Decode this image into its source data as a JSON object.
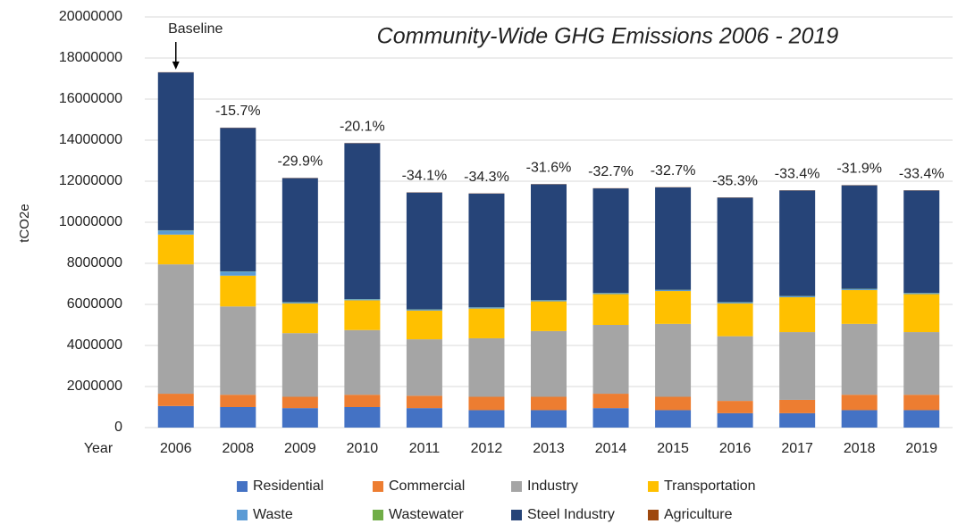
{
  "chart_data": {
    "type": "stacked_bar",
    "title": "Community-Wide GHG Emissions 2006 - 2019",
    "y_label": "tCO2e",
    "x_label": "Year",
    "categories": [
      "2006",
      "2008",
      "2009",
      "2010",
      "2011",
      "2012",
      "2013",
      "2014",
      "2015",
      "2016",
      "2017",
      "2018",
      "2019"
    ],
    "annotations": [
      "Baseline",
      "-15.7%",
      "-29.9%",
      "-20.1%",
      "-34.1%",
      "-34.3%",
      "-31.6%",
      "-32.7%",
      "-32.7%",
      "-35.3%",
      "-33.4%",
      "-31.9%",
      "-33.4%"
    ],
    "series": [
      {
        "name": "Residential",
        "color": "#4472c4",
        "values": [
          1050000,
          1000000,
          950000,
          1000000,
          950000,
          850000,
          850000,
          950000,
          850000,
          700000,
          700000,
          850000,
          850000
        ]
      },
      {
        "name": "Commercial",
        "color": "#ed7d31",
        "values": [
          600000,
          600000,
          550000,
          600000,
          600000,
          650000,
          650000,
          700000,
          650000,
          600000,
          650000,
          750000,
          750000
        ]
      },
      {
        "name": "Industry",
        "color": "#a5a5a5",
        "values": [
          6300000,
          4300000,
          3100000,
          3150000,
          2750000,
          2850000,
          3200000,
          3350000,
          3550000,
          3150000,
          3300000,
          3450000,
          3050000
        ]
      },
      {
        "name": "Transportation",
        "color": "#ffc000",
        "values": [
          1450000,
          1500000,
          1450000,
          1450000,
          1400000,
          1450000,
          1450000,
          1500000,
          1600000,
          1600000,
          1700000,
          1650000,
          1850000
        ]
      },
      {
        "name": "Waste",
        "color": "#5b9bd5",
        "values": [
          200000,
          200000,
          50000,
          50000,
          50000,
          50000,
          50000,
          50000,
          50000,
          50000,
          50000,
          50000,
          50000
        ]
      },
      {
        "name": "Wastewater",
        "color": "#70ad47",
        "values": [
          10000,
          10000,
          10000,
          10000,
          10000,
          10000,
          10000,
          10000,
          10000,
          10000,
          10000,
          10000,
          10000
        ]
      },
      {
        "name": "Steel Industry",
        "color": "#264478",
        "values": [
          7690000,
          6990000,
          6040000,
          7590000,
          5690000,
          5540000,
          5640000,
          5090000,
          4990000,
          5090000,
          5140000,
          5040000,
          4990000
        ]
      },
      {
        "name": "Agriculture",
        "color": "#9e480e",
        "values": [
          10000,
          10000,
          10000,
          10000,
          10000,
          10000,
          10000,
          10000,
          10000,
          10000,
          10000,
          10000,
          10000
        ]
      }
    ],
    "ylim": [
      0,
      20000000
    ],
    "yticks": [
      0,
      2000000,
      4000000,
      6000000,
      8000000,
      10000000,
      12000000,
      14000000,
      16000000,
      18000000,
      20000000
    ],
    "grid": true
  }
}
